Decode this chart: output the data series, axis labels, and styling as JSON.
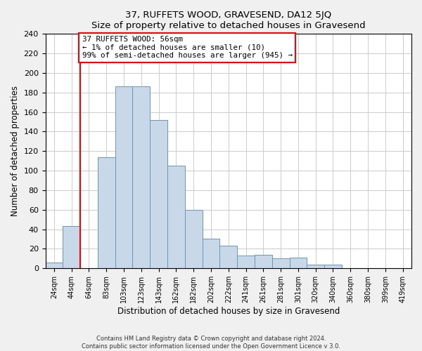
{
  "title": "37, RUFFETS WOOD, GRAVESEND, DA12 5JQ",
  "subtitle": "Size of property relative to detached houses in Gravesend",
  "xlabel": "Distribution of detached houses by size in Gravesend",
  "ylabel": "Number of detached properties",
  "bar_labels": [
    "24sqm",
    "44sqm",
    "64sqm",
    "83sqm",
    "103sqm",
    "123sqm",
    "143sqm",
    "162sqm",
    "182sqm",
    "202sqm",
    "222sqm",
    "241sqm",
    "261sqm",
    "281sqm",
    "301sqm",
    "320sqm",
    "340sqm",
    "360sqm",
    "380sqm",
    "399sqm",
    "419sqm"
  ],
  "bar_values": [
    6,
    43,
    0,
    114,
    186,
    186,
    152,
    105,
    60,
    30,
    23,
    13,
    14,
    10,
    11,
    4,
    4,
    0,
    0,
    0,
    0
  ],
  "bar_color": "#c8d8e8",
  "bar_edge_color": "#6699bb",
  "ylim": [
    0,
    240
  ],
  "yticks": [
    0,
    20,
    40,
    60,
    80,
    100,
    120,
    140,
    160,
    180,
    200,
    220,
    240
  ],
  "annotation_title": "37 RUFFETS WOOD: 56sqm",
  "annotation_line1": "← 1% of detached houses are smaller (10)",
  "annotation_line2": "99% of semi-detached houses are larger (945) →",
  "footer1": "Contains HM Land Registry data © Crown copyright and database right 2024.",
  "footer2": "Contains public sector information licensed under the Open Government Licence v 3.0.",
  "background_color": "#f0f0f0",
  "plot_bg_color": "#ffffff",
  "grid_color": "#cccccc",
  "red_line_index": 1.5
}
